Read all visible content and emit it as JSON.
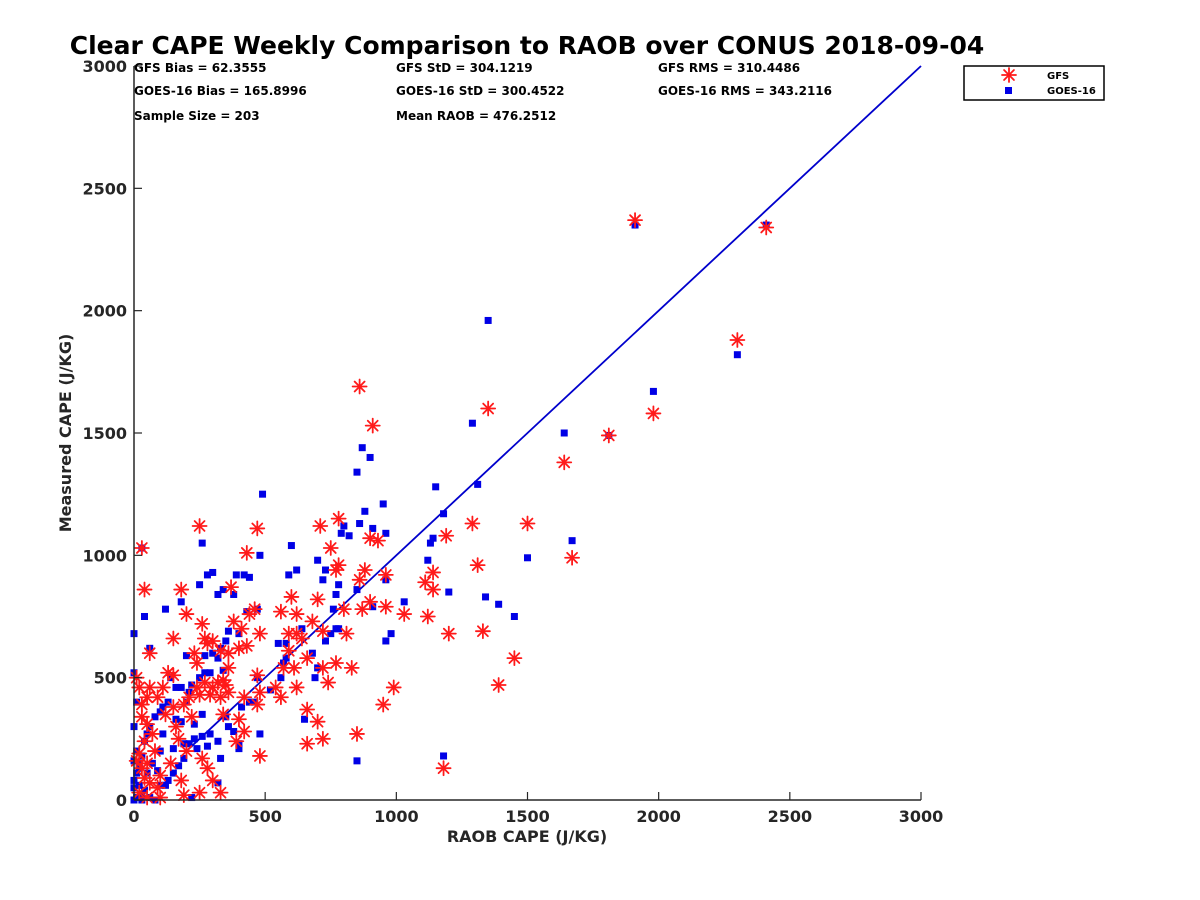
{
  "chart_data": {
    "type": "scatter",
    "title": "Clear CAPE Weekly Comparison to RAOB over CONUS 2018-09-04",
    "xlabel": "RAOB CAPE (J/KG)",
    "ylabel": "Measured CAPE (J/KG)",
    "xlim": [
      0,
      3000
    ],
    "ylim": [
      0,
      3000
    ],
    "xticks": [
      "0",
      "500",
      "1000",
      "1500",
      "2000",
      "2500",
      "3000"
    ],
    "yticks": [
      "0",
      "500",
      "1000",
      "1500",
      "2000",
      "2500",
      "3000"
    ],
    "grid": false,
    "legend_position": "top-right",
    "stats": [
      "GFS Bias = 62.3555",
      "GFS StD = 304.1219",
      "GFS RMS = 310.4486",
      "GOES-16 Bias = 165.8996",
      "GOES-16 StD = 300.4522",
      "GOES-16 RMS = 343.2116",
      "Sample Size = 203",
      "Mean RAOB = 476.2512"
    ],
    "reference_line": {
      "x": [
        200,
        3000
      ],
      "y": [
        200,
        3000
      ],
      "color": "#0000cc"
    },
    "series": [
      {
        "name": "GFS",
        "marker": "asterisk",
        "color": "#ff1a1a",
        "points": [
          [
            30,
            1030
          ],
          [
            40,
            860
          ],
          [
            150,
            660
          ],
          [
            250,
            1120
          ],
          [
            470,
            1110
          ],
          [
            430,
            1010
          ],
          [
            370,
            870
          ],
          [
            180,
            860
          ],
          [
            200,
            760
          ],
          [
            300,
            650
          ],
          [
            270,
            660
          ],
          [
            330,
            610
          ],
          [
            380,
            730
          ],
          [
            410,
            700
          ],
          [
            360,
            600
          ],
          [
            460,
            780
          ],
          [
            440,
            760
          ],
          [
            560,
            770
          ],
          [
            600,
            830
          ],
          [
            620,
            760
          ],
          [
            590,
            680
          ],
          [
            640,
            660
          ],
          [
            680,
            730
          ],
          [
            700,
            820
          ],
          [
            720,
            690
          ],
          [
            710,
            1120
          ],
          [
            780,
            1150
          ],
          [
            780,
            960
          ],
          [
            810,
            680
          ],
          [
            830,
            540
          ],
          [
            770,
            560
          ],
          [
            720,
            540
          ],
          [
            740,
            480
          ],
          [
            660,
            580
          ],
          [
            620,
            460
          ],
          [
            560,
            420
          ],
          [
            540,
            460
          ],
          [
            480,
            440
          ],
          [
            420,
            420
          ],
          [
            360,
            440
          ],
          [
            330,
            420
          ],
          [
            300,
            460
          ],
          [
            270,
            480
          ],
          [
            250,
            430
          ],
          [
            240,
            460
          ],
          [
            210,
            420
          ],
          [
            190,
            390
          ],
          [
            150,
            510
          ],
          [
            110,
            460
          ],
          [
            90,
            420
          ],
          [
            60,
            460
          ],
          [
            50,
            420
          ],
          [
            20,
            460
          ],
          [
            10,
            500
          ],
          [
            30,
            390
          ],
          [
            30,
            340
          ],
          [
            50,
            310
          ],
          [
            70,
            270
          ],
          [
            40,
            240
          ],
          [
            20,
            190
          ],
          [
            10,
            160
          ],
          [
            30,
            130
          ],
          [
            40,
            90
          ],
          [
            60,
            70
          ],
          [
            90,
            50
          ],
          [
            20,
            30
          ],
          [
            50,
            10
          ],
          [
            100,
            10
          ],
          [
            190,
            20
          ],
          [
            250,
            30
          ],
          [
            330,
            30
          ],
          [
            300,
            80
          ],
          [
            260,
            170
          ],
          [
            280,
            130
          ],
          [
            390,
            240
          ],
          [
            480,
            180
          ],
          [
            400,
            330
          ],
          [
            470,
            390
          ],
          [
            470,
            510
          ],
          [
            360,
            540
          ],
          [
            340,
            490
          ],
          [
            400,
            620
          ],
          [
            430,
            630
          ],
          [
            480,
            680
          ],
          [
            620,
            680
          ],
          [
            660,
            370
          ],
          [
            700,
            320
          ],
          [
            720,
            250
          ],
          [
            660,
            230
          ],
          [
            850,
            270
          ],
          [
            860,
            900
          ],
          [
            880,
            940
          ],
          [
            910,
            1530
          ],
          [
            860,
            1690
          ],
          [
            900,
            1070
          ],
          [
            930,
            1060
          ],
          [
            960,
            920
          ],
          [
            960,
            790
          ],
          [
            950,
            390
          ],
          [
            990,
            460
          ],
          [
            1030,
            760
          ],
          [
            1110,
            890
          ],
          [
            1140,
            930
          ],
          [
            1140,
            860
          ],
          [
            1120,
            750
          ],
          [
            1190,
            1080
          ],
          [
            1200,
            680
          ],
          [
            1180,
            130
          ],
          [
            1290,
            1130
          ],
          [
            1310,
            960
          ],
          [
            1330,
            690
          ],
          [
            1390,
            470
          ],
          [
            1450,
            580
          ],
          [
            1500,
            1130
          ],
          [
            1350,
            1600
          ],
          [
            1640,
            1380
          ],
          [
            1670,
            990
          ],
          [
            1810,
            1490
          ],
          [
            1980,
            1580
          ],
          [
            1910,
            2370
          ],
          [
            2300,
            1880
          ],
          [
            2410,
            2340
          ],
          [
            130,
            520
          ],
          [
            150,
            380
          ],
          [
            170,
            250
          ],
          [
            220,
            340
          ],
          [
            240,
            560
          ],
          [
            280,
            640
          ],
          [
            320,
            480
          ],
          [
            120,
            350
          ],
          [
            80,
            200
          ],
          [
            50,
            150
          ],
          [
            160,
            300
          ],
          [
            200,
            200
          ],
          [
            230,
            600
          ],
          [
            260,
            720
          ],
          [
            290,
            430
          ],
          [
            350,
            470
          ],
          [
            570,
            540
          ],
          [
            590,
            610
          ],
          [
            610,
            540
          ],
          [
            800,
            780
          ],
          [
            870,
            780
          ],
          [
            900,
            810
          ],
          [
            100,
            100
          ],
          [
            140,
            150
          ],
          [
            60,
            600
          ],
          [
            180,
            80
          ],
          [
            340,
            350
          ],
          [
            420,
            280
          ],
          [
            750,
            1030
          ],
          [
            770,
            940
          ]
        ]
      },
      {
        "name": "GOES-16",
        "marker": "square",
        "color": "#0000e6",
        "points": [
          [
            30,
            1030
          ],
          [
            40,
            750
          ],
          [
            60,
            620
          ],
          [
            120,
            780
          ],
          [
            180,
            810
          ],
          [
            250,
            880
          ],
          [
            260,
            1050
          ],
          [
            280,
            920
          ],
          [
            300,
            930
          ],
          [
            320,
            840
          ],
          [
            340,
            860
          ],
          [
            380,
            840
          ],
          [
            390,
            920
          ],
          [
            420,
            920
          ],
          [
            440,
            910
          ],
          [
            480,
            1000
          ],
          [
            490,
            1250
          ],
          [
            470,
            780
          ],
          [
            430,
            770
          ],
          [
            400,
            680
          ],
          [
            360,
            690
          ],
          [
            350,
            650
          ],
          [
            330,
            620
          ],
          [
            320,
            580
          ],
          [
            290,
            520
          ],
          [
            270,
            520
          ],
          [
            250,
            500
          ],
          [
            220,
            470
          ],
          [
            210,
            440
          ],
          [
            200,
            400
          ],
          [
            180,
            460
          ],
          [
            160,
            460
          ],
          [
            140,
            500
          ],
          [
            130,
            400
          ],
          [
            110,
            380
          ],
          [
            100,
            360
          ],
          [
            80,
            340
          ],
          [
            60,
            300
          ],
          [
            50,
            270
          ],
          [
            40,
            240
          ],
          [
            30,
            180
          ],
          [
            20,
            150
          ],
          [
            10,
            110
          ],
          [
            0,
            80
          ],
          [
            20,
            60
          ],
          [
            40,
            40
          ],
          [
            30,
            20
          ],
          [
            60,
            10
          ],
          [
            80,
            0
          ],
          [
            100,
            60
          ],
          [
            130,
            80
          ],
          [
            150,
            110
          ],
          [
            170,
            140
          ],
          [
            190,
            170
          ],
          [
            210,
            230
          ],
          [
            230,
            250
          ],
          [
            260,
            260
          ],
          [
            290,
            270
          ],
          [
            320,
            240
          ],
          [
            360,
            300
          ],
          [
            380,
            280
          ],
          [
            400,
            210
          ],
          [
            480,
            270
          ],
          [
            520,
            450
          ],
          [
            560,
            500
          ],
          [
            570,
            560
          ],
          [
            580,
            640
          ],
          [
            590,
            920
          ],
          [
            600,
            1040
          ],
          [
            620,
            940
          ],
          [
            640,
            700
          ],
          [
            680,
            600
          ],
          [
            700,
            540
          ],
          [
            730,
            650
          ],
          [
            750,
            680
          ],
          [
            770,
            700
          ],
          [
            780,
            880
          ],
          [
            790,
            1090
          ],
          [
            800,
            1120
          ],
          [
            850,
            860
          ],
          [
            860,
            1130
          ],
          [
            880,
            1180
          ],
          [
            900,
            1400
          ],
          [
            910,
            1110
          ],
          [
            950,
            1210
          ],
          [
            960,
            1090
          ],
          [
            960,
            900
          ],
          [
            980,
            680
          ],
          [
            960,
            650
          ],
          [
            1030,
            810
          ],
          [
            1120,
            980
          ],
          [
            1130,
            1050
          ],
          [
            1140,
            1070
          ],
          [
            1150,
            1280
          ],
          [
            1180,
            1170
          ],
          [
            1200,
            850
          ],
          [
            1290,
            1540
          ],
          [
            1310,
            1290
          ],
          [
            1340,
            830
          ],
          [
            1390,
            800
          ],
          [
            1450,
            750
          ],
          [
            1350,
            1960
          ],
          [
            1500,
            990
          ],
          [
            1640,
            1500
          ],
          [
            1670,
            1060
          ],
          [
            1810,
            1490
          ],
          [
            1980,
            1670
          ],
          [
            1910,
            2350
          ],
          [
            2300,
            1820
          ],
          [
            2410,
            2350
          ],
          [
            0,
            680
          ],
          [
            0,
            520
          ],
          [
            10,
            400
          ],
          [
            0,
            300
          ],
          [
            10,
            200
          ],
          [
            0,
            160
          ],
          [
            20,
            130
          ],
          [
            0,
            50
          ],
          [
            0,
            0
          ],
          [
            10,
            10
          ],
          [
            30,
            0
          ],
          [
            50,
            110
          ],
          [
            70,
            150
          ],
          [
            100,
            200
          ],
          [
            150,
            210
          ],
          [
            190,
            230
          ],
          [
            230,
            310
          ],
          [
            260,
            350
          ],
          [
            270,
            590
          ],
          [
            300,
            600
          ],
          [
            340,
            530
          ],
          [
            200,
            590
          ],
          [
            110,
            270
          ],
          [
            160,
            330
          ],
          [
            180,
            320
          ],
          [
            220,
            10
          ],
          [
            320,
            70
          ],
          [
            330,
            170
          ],
          [
            350,
            340
          ],
          [
            410,
            380
          ],
          [
            440,
            400
          ],
          [
            460,
            400
          ],
          [
            470,
            500
          ],
          [
            550,
            640
          ],
          [
            580,
            580
          ],
          [
            650,
            330
          ],
          [
            690,
            500
          ],
          [
            700,
            980
          ],
          [
            720,
            900
          ],
          [
            730,
            940
          ],
          [
            760,
            780
          ],
          [
            770,
            840
          ],
          [
            780,
            700
          ],
          [
            820,
            1080
          ],
          [
            850,
            1340
          ],
          [
            870,
            1440
          ],
          [
            850,
            160
          ],
          [
            1180,
            180
          ],
          [
            910,
            790
          ],
          [
            400,
            230
          ],
          [
            280,
            220
          ],
          [
            240,
            210
          ],
          [
            120,
            60
          ],
          [
            90,
            120
          ]
        ]
      }
    ]
  }
}
